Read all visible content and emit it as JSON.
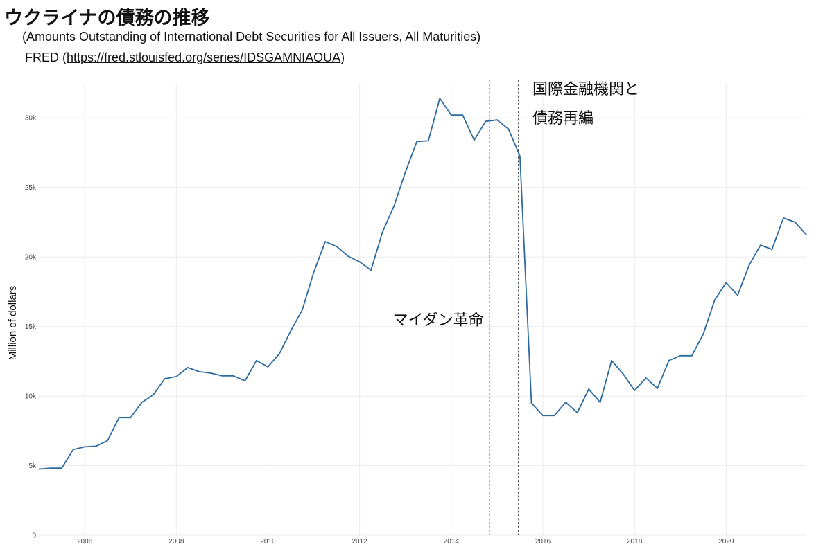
{
  "chart_data": {
    "type": "line",
    "title": "ウクライナの債務の推移",
    "subtitle": "(Amounts Outstanding of International Debt Securities for All Issuers, All Maturities)",
    "source": {
      "prefix": "FRED (",
      "url": "https://fred.stlouisfed.org/series/IDSGAMNIAOUA",
      "suffix": ")"
    },
    "ylabel": "Million of dollars",
    "xlim": [
      2005.0,
      2021.75
    ],
    "ylim": [
      0,
      32500
    ],
    "x_ticks": [
      {
        "value": 2006,
        "label": "2006"
      },
      {
        "value": 2008,
        "label": "2008"
      },
      {
        "value": 2010,
        "label": "2010"
      },
      {
        "value": 2012,
        "label": "2012"
      },
      {
        "value": 2014,
        "label": "2014"
      },
      {
        "value": 2016,
        "label": "2016"
      },
      {
        "value": 2018,
        "label": "2018"
      },
      {
        "value": 2020,
        "label": "2020"
      }
    ],
    "y_ticks": [
      {
        "value": 0,
        "label": "0"
      },
      {
        "value": 5000,
        "label": "5k"
      },
      {
        "value": 10000,
        "label": "10k"
      },
      {
        "value": 15000,
        "label": "15k"
      },
      {
        "value": 20000,
        "label": "20k"
      },
      {
        "value": 25000,
        "label": "25k"
      },
      {
        "value": 30000,
        "label": "30k"
      }
    ],
    "grid": true,
    "line_color": "#2c6aa0",
    "series": [
      {
        "x": [
          2005.0,
          2005.25,
          2005.5,
          2005.75,
          2006.0,
          2006.25,
          2006.5,
          2006.75,
          2007.0,
          2007.25,
          2007.5,
          2007.75,
          2008.0,
          2008.25,
          2008.5,
          2008.75,
          2009.0,
          2009.25,
          2009.5,
          2009.75,
          2010.0,
          2010.25,
          2010.5,
          2010.75,
          2011.0,
          2011.25,
          2011.5,
          2011.75,
          2012.0,
          2012.25,
          2012.5,
          2012.75,
          2013.0,
          2013.25,
          2013.5,
          2013.75,
          2014.0,
          2014.25,
          2014.5,
          2014.75,
          2015.0,
          2015.25,
          2015.5,
          2015.75,
          2016.0,
          2016.25,
          2016.5,
          2016.75,
          2017.0,
          2017.25,
          2017.5,
          2017.75,
          2018.0,
          2018.25,
          2018.5,
          2018.75,
          2019.0,
          2019.25,
          2019.5,
          2019.75,
          2020.0,
          2020.25,
          2020.5,
          2020.75,
          2021.0,
          2021.25,
          2021.5,
          2021.75
        ],
        "y": [
          4750,
          4820,
          4820,
          6150,
          6350,
          6400,
          6800,
          8450,
          8450,
          9550,
          10100,
          11250,
          11400,
          12050,
          11750,
          11650,
          11450,
          11450,
          11100,
          12550,
          12100,
          13050,
          14700,
          16200,
          18900,
          21100,
          20750,
          20050,
          19650,
          19050,
          21800,
          23650,
          26100,
          28300,
          28350,
          31400,
          30200,
          30200,
          28400,
          29750,
          29850,
          29200,
          27250,
          9500,
          8600,
          8600,
          9550,
          8800,
          10500,
          9550,
          12550,
          11600,
          10400,
          11300,
          10550,
          12550,
          12900,
          12900,
          14450,
          16900,
          18150,
          17250,
          19400,
          20850,
          20550,
          22800,
          22500,
          21600
        ]
      }
    ],
    "vlines": [
      {
        "x": 2014.83,
        "label": "マイダン革命",
        "label_pos": "left"
      },
      {
        "x": 2015.47,
        "label_lines": [
          "国際金融機関と",
          "債務再編"
        ],
        "label_pos": "right"
      }
    ]
  }
}
